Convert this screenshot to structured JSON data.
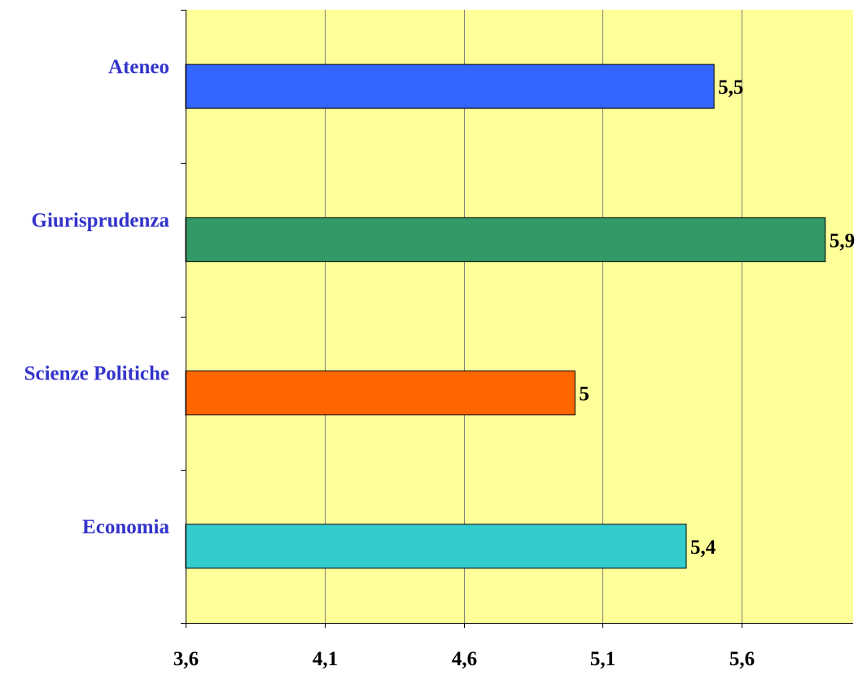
{
  "chart_data": {
    "type": "bar",
    "orientation": "horizontal",
    "categories": [
      "Ateneo",
      "Giurisprudenza",
      "Scienze Politiche",
      "Economia"
    ],
    "values": [
      5.5,
      5.9,
      5.0,
      5.4
    ],
    "data_labels": [
      "5,5",
      "5,9",
      "5",
      "5,4"
    ],
    "bar_colors": [
      "#3366ff",
      "#339966",
      "#ff6600",
      "#33cccc"
    ],
    "x_ticks": [
      3.6,
      4.1,
      4.6,
      5.1,
      5.6
    ],
    "x_tick_labels": [
      "3,6",
      "4,1",
      "4,6",
      "5,1",
      "5,6"
    ],
    "xlim": [
      3.6,
      6.0
    ],
    "grid": true,
    "title": "",
    "xlabel": "",
    "ylabel": ""
  },
  "style": {
    "plot_background": "#ffff99",
    "category_label_color": "#3333cc",
    "gridline_color": "#808080",
    "bar_border_color": "#000000"
  }
}
